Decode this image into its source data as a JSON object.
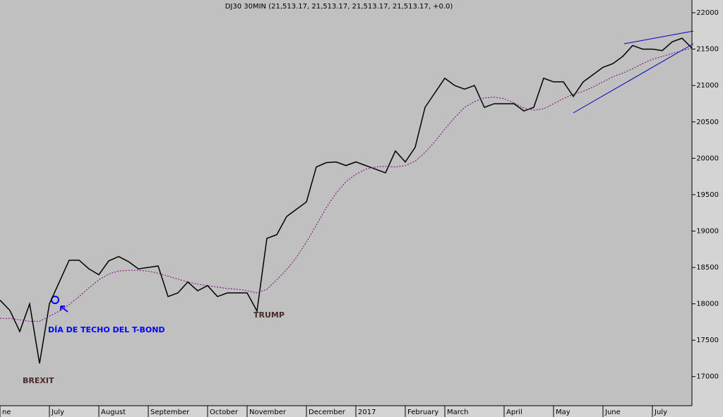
{
  "chart_data": {
    "type": "line",
    "title": "DJ30 30MIN (21,513.17, 21,513.17, 21,513.17, 21,513.17, +0.0)",
    "annotations": [
      "BREXIT",
      "TRUMP",
      "DÍA DE TECHO DEL T-BOND"
    ],
    "categories": [
      "ne",
      null,
      null,
      null,
      null,
      "July",
      null,
      null,
      null,
      null,
      "August",
      null,
      null,
      null,
      null,
      "September",
      null,
      null,
      null,
      null,
      null,
      "October",
      null,
      null,
      null,
      "November",
      null,
      null,
      null,
      null,
      null,
      "December",
      null,
      null,
      null,
      null,
      "2017",
      null,
      null,
      null,
      null,
      "February",
      null,
      null,
      null,
      "March",
      null,
      null,
      null,
      null,
      null,
      "April",
      null,
      null,
      null,
      null,
      "May",
      null,
      null,
      null,
      null,
      "June",
      null,
      null,
      null,
      null,
      "July",
      null,
      null,
      null,
      null
    ],
    "series": [
      {
        "name": "DJ30",
        "color": "#000000",
        "values": [
          18050,
          17910,
          17620,
          18000,
          17180,
          18000,
          18300,
          18600,
          18600,
          18480,
          18400,
          18590,
          18650,
          18580,
          18480,
          18500,
          18520,
          18100,
          18150,
          18300,
          18180,
          18250,
          18100,
          18150,
          18150,
          18150,
          17900,
          18900,
          18950,
          19200,
          19300,
          19400,
          19880,
          19940,
          19950,
          19900,
          19950,
          19900,
          19850,
          19800,
          20100,
          19950,
          20150,
          20700,
          20900,
          21100,
          21000,
          20950,
          21000,
          20700,
          20750,
          20750,
          20750,
          20650,
          20700,
          21100,
          21050,
          21050,
          20850,
          21050,
          21150,
          21250,
          21300,
          21400,
          21550,
          21500,
          21500,
          21480,
          21600,
          21650,
          21513.17
        ]
      },
      {
        "name": "MA",
        "color": "#800080",
        "values": [
          17800,
          17800,
          17780,
          17760,
          17760,
          17830,
          17900,
          17990,
          18100,
          18220,
          18330,
          18410,
          18450,
          18460,
          18460,
          18450,
          18420,
          18380,
          18340,
          18300,
          18270,
          18250,
          18230,
          18210,
          18200,
          18180,
          18150,
          18200,
          18330,
          18470,
          18640,
          18850,
          19080,
          19320,
          19520,
          19680,
          19780,
          19850,
          19880,
          19890,
          19880,
          19900,
          19960,
          20080,
          20230,
          20400,
          20560,
          20700,
          20780,
          20830,
          20840,
          20820,
          20760,
          20690,
          20660,
          20680,
          20750,
          20820,
          20880,
          20920,
          20980,
          21050,
          21120,
          21170,
          21230,
          21300,
          21360,
          21400,
          21440,
          21480,
          21513
        ]
      }
    ],
    "ylim": [
      16600,
      22175
    ],
    "yticks": [
      17000,
      17500,
      18000,
      18500,
      19000,
      19500,
      20000,
      20500,
      21000,
      21500,
      22000
    ]
  }
}
